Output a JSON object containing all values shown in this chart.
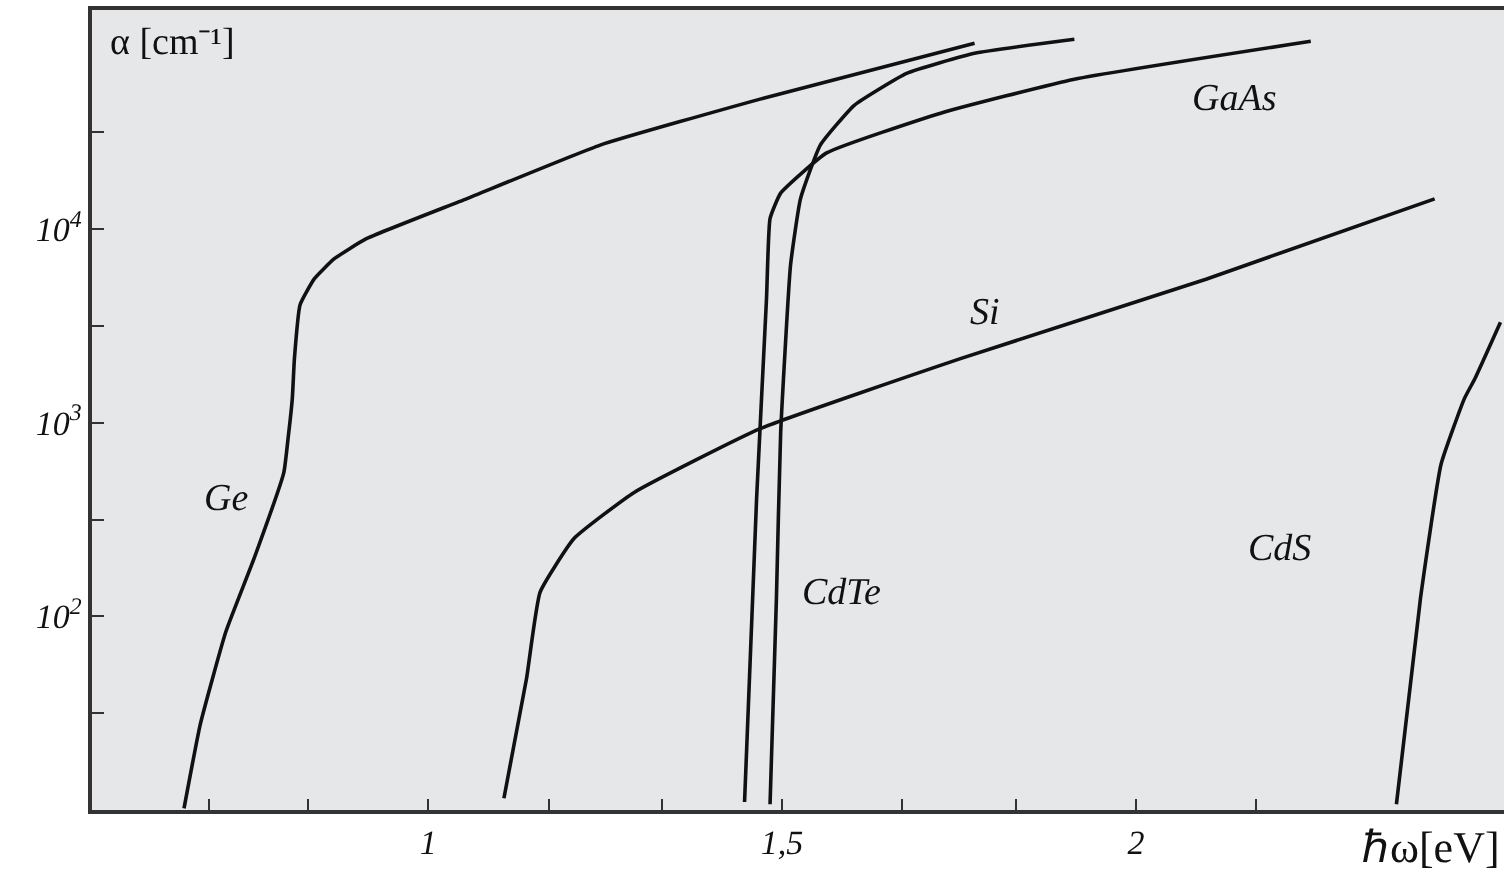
{
  "chart_data": {
    "type": "line",
    "xlabel": "ℏω[eV]",
    "ylabel": "α [cm⁻¹]",
    "log": "y",
    "grid": false,
    "legend": false,
    "marker": "none",
    "line_style": "solid",
    "xlim": [
      0.525,
      2.52
    ],
    "xticks": [
      {
        "value": 0.69,
        "label": null
      },
      {
        "value": 0.83,
        "label": null
      },
      1,
      {
        "value": 1.17,
        "label": null
      },
      {
        "value": 1.33,
        "label": null
      },
      {
        "value": 1.5,
        "label": "1,5"
      },
      {
        "value": 1.67,
        "label": null
      },
      {
        "value": 1.83,
        "label": null
      },
      2,
      {
        "value": 2.17,
        "label": null
      }
    ],
    "ylim": [
      10,
      135000
    ],
    "yticks": [
      {
        "value": 31.6,
        "label": null
      },
      {
        "value": 100,
        "label": "10$^{2}$"
      },
      {
        "value": 316,
        "label": null
      },
      {
        "value": 1000,
        "label": "10$^{3}$"
      },
      {
        "value": 3160,
        "label": null
      },
      {
        "value": 10000,
        "label": "10$^{4}$"
      },
      {
        "value": 31600,
        "label": null
      }
    ],
    "series": [
      {
        "name": "Ge",
        "color": "#111111",
        "x": [
          0.655,
          0.678,
          0.714,
          0.754,
          0.796,
          0.802,
          0.808,
          0.811,
          0.819,
          0.839,
          0.867,
          0.912,
          1.054,
          1.243,
          1.469,
          1.772
        ],
        "values": [
          10.2,
          27.7,
          83,
          199,
          552,
          828,
          1330,
          2140,
          4060,
          5520,
          7000,
          8880,
          14300,
          27100,
          46800,
          91000
        ]
      },
      {
        "name": "GaAs",
        "color": "#111111",
        "x": [
          1.447,
          1.464,
          1.478,
          1.483,
          1.498,
          1.563,
          1.724,
          1.913,
          2.247
        ],
        "values": [
          11,
          406,
          4360,
          11300,
          15300,
          24700,
          39600,
          59300,
          93100
        ]
      },
      {
        "name": "CdTe",
        "color": "#111111",
        "x": [
          1.483,
          1.492,
          1.498,
          1.512,
          1.526,
          1.554,
          1.602,
          1.676,
          1.772,
          1.913
        ],
        "values": [
          10.7,
          124,
          887,
          6520,
          14300,
          27100,
          43500,
          63600,
          80700,
          95300
        ]
      },
      {
        "name": "Si",
        "color": "#111111",
        "x": [
          1.107,
          1.139,
          1.158,
          1.206,
          1.291,
          1.469,
          1.752,
          2.1,
          2.422
        ],
        "values": [
          11.5,
          47.9,
          133,
          252,
          436,
          931,
          2140,
          5520,
          14300
        ]
      },
      {
        "name": "CdS",
        "color": "#111111",
        "x": [
          2.368,
          2.402,
          2.431,
          2.464,
          2.479,
          2.515
        ],
        "values": [
          10.7,
          124,
          608,
          1330,
          1690,
          3300
        ]
      }
    ]
  }
}
